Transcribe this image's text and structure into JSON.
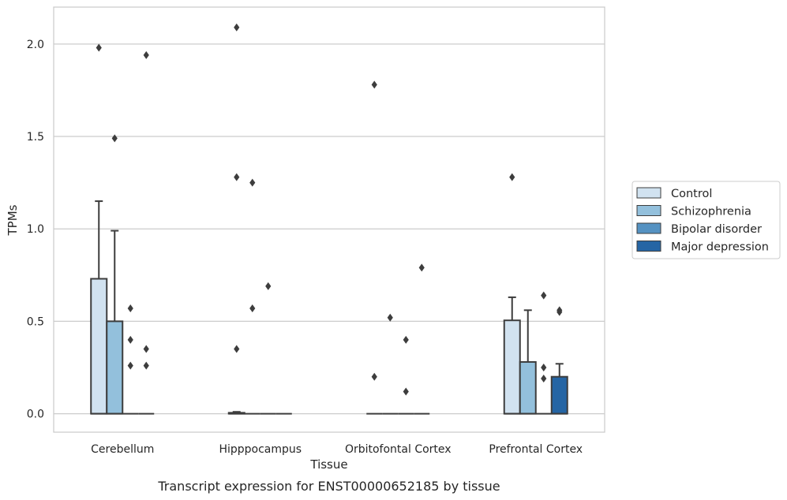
{
  "chart_data": {
    "type": "box",
    "xlabel": "Tissue",
    "ylabel": "TPMs",
    "caption": "Transcript expression for ENST00000652185 by tissue",
    "categories": [
      "Cerebellum",
      "Hipppocampus",
      "Orbitofontal Cortex",
      "Prefrontal Cortex"
    ],
    "ylim": [
      -0.1,
      2.2
    ],
    "yticks": [
      "0.0",
      "0.5",
      "1.0",
      "1.5",
      "2.0"
    ],
    "grid": "horizontal",
    "legend_position": "right",
    "series": [
      {
        "name": "Control",
        "color": "#d1e2f0",
        "boxes": [
          {
            "q1": 0,
            "median": 0,
            "q3": 0.73,
            "whisker_low": 0,
            "whisker_high": 1.15,
            "outliers": [
              1.98
            ]
          },
          {
            "q1": 0,
            "median": 0,
            "q3": 0.005,
            "whisker_low": 0,
            "whisker_high": 0.01,
            "outliers": [
              2.09,
              1.28,
              0.35
            ]
          },
          {
            "q1": 0,
            "median": 0,
            "q3": 0,
            "whisker_low": 0,
            "whisker_high": 0,
            "outliers": [
              1.78,
              0.2
            ]
          },
          {
            "q1": 0,
            "median": 0,
            "q3": 0.505,
            "whisker_low": 0,
            "whisker_high": 0.63,
            "outliers": [
              1.28
            ]
          }
        ]
      },
      {
        "name": "Schizophrenia",
        "color": "#93c0dc",
        "boxes": [
          {
            "q1": 0,
            "median": 0,
            "q3": 0.5,
            "whisker_low": 0,
            "whisker_high": 0.99,
            "outliers": [
              1.49
            ]
          },
          {
            "q1": 0,
            "median": 0,
            "q3": 0,
            "whisker_low": 0,
            "whisker_high": 0,
            "outliers": [
              1.25,
              0.57
            ]
          },
          {
            "q1": 0,
            "median": 0,
            "q3": 0,
            "whisker_low": 0,
            "whisker_high": 0,
            "outliers": [
              0.52
            ]
          },
          {
            "q1": 0,
            "median": 0,
            "q3": 0.28,
            "whisker_low": 0,
            "whisker_high": 0.56,
            "outliers": []
          }
        ]
      },
      {
        "name": "Bipolar disorder",
        "color": "#5592c2",
        "boxes": [
          {
            "q1": 0,
            "median": 0,
            "q3": 0,
            "whisker_low": 0,
            "whisker_high": 0,
            "outliers": [
              0.57,
              0.4,
              0.26
            ]
          },
          {
            "q1": 0,
            "median": 0,
            "q3": 0,
            "whisker_low": 0,
            "whisker_high": 0,
            "outliers": [
              0.69
            ]
          },
          {
            "q1": 0,
            "median": 0,
            "q3": 0,
            "whisker_low": 0,
            "whisker_high": 0,
            "outliers": [
              0.4,
              0.12
            ]
          },
          {
            "q1": 0,
            "median": 0,
            "q3": 0,
            "whisker_low": 0,
            "whisker_high": 0,
            "outliers": [
              0.64,
              0.25,
              0.19
            ]
          }
        ]
      },
      {
        "name": "Major depression",
        "color": "#2565a4",
        "boxes": [
          {
            "q1": 0,
            "median": 0,
            "q3": 0,
            "whisker_low": 0,
            "whisker_high": 0,
            "outliers": [
              1.94,
              0.35,
              0.26
            ]
          },
          {
            "q1": 0,
            "median": 0,
            "q3": 0,
            "whisker_low": 0,
            "whisker_high": 0,
            "outliers": []
          },
          {
            "q1": 0,
            "median": 0,
            "q3": 0,
            "whisker_low": 0,
            "whisker_high": 0,
            "outliers": [
              0.79
            ]
          },
          {
            "q1": 0,
            "median": 0,
            "q3": 0.2,
            "whisker_low": 0,
            "whisker_high": 0.27,
            "outliers": [
              0.56,
              0.55
            ]
          }
        ]
      }
    ]
  },
  "colors": {
    "grid": "#cccccc",
    "frame": "#cccccc",
    "box_edge": "#3d3d3d"
  }
}
